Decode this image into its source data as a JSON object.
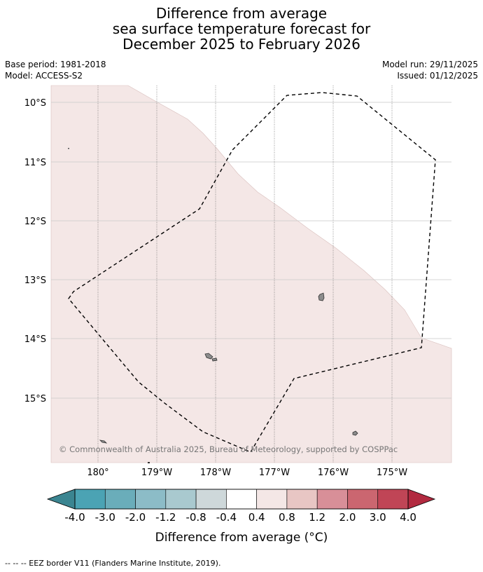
{
  "title": {
    "line1": "Difference from average",
    "line2": "sea surface temperature forecast for",
    "line3": "December 2025 to February 2026"
  },
  "meta": {
    "base_period": "Base period: 1981-2018",
    "model": "Model: ACCESS-S2",
    "model_run": "Model run: 29/11/2025",
    "issued": "Issued: 01/12/2025"
  },
  "map": {
    "lat_labels": [
      "10°S",
      "11°S",
      "12°S",
      "13°S",
      "14°S",
      "15°S"
    ],
    "lon_labels": [
      "180°",
      "179°W",
      "178°W",
      "177°W",
      "176°W",
      "175°W"
    ],
    "copyright": "© Commonwealth of Australia 2025, Bureau of Meteorology, supported by COSPPac",
    "colors": {
      "anomaly_fill": "#f4e7e6",
      "land": "#8c8c8c",
      "gridline": "#c8c8c8"
    }
  },
  "colorbar": {
    "ticks": [
      "-4.0",
      "-3.0",
      "-2.0",
      "-1.2",
      "-0.8",
      "-0.4",
      "0.4",
      "0.8",
      "1.2",
      "2.0",
      "3.0",
      "4.0"
    ],
    "colors": [
      "#4ba3b4",
      "#6aadba",
      "#8cbcc7",
      "#a9c9cf",
      "#ced8da",
      "#ffffff",
      "#f4e7e6",
      "#e8c6c4",
      "#d88f98",
      "#cb6670",
      "#c04556"
    ],
    "under_color": "#3b8591",
    "over_color": "#b22a40",
    "label": "Difference from average (°C)"
  },
  "footer": "--  --  -- EEZ border V11 (Flanders Marine Institute, 2019)."
}
